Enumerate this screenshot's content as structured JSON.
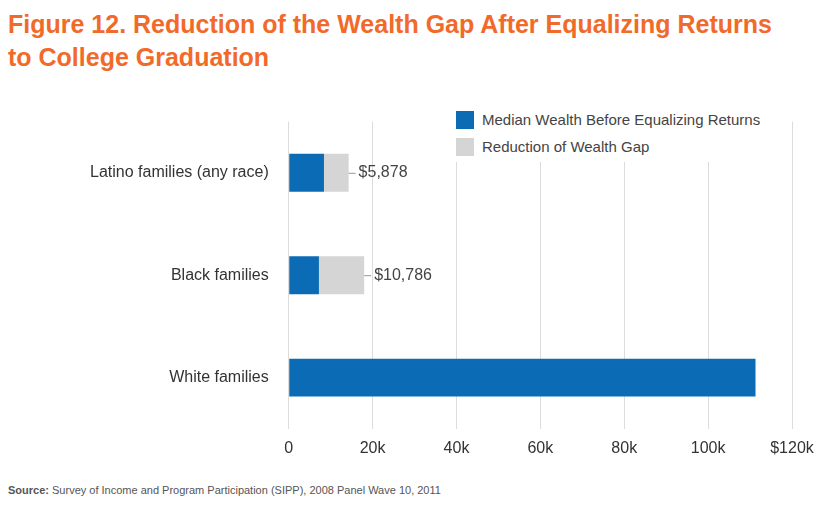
{
  "chart_data": {
    "type": "bar",
    "title": [
      "Figure 12. Reduction of the Wealth Gap After Equalizing Returns",
      "to College Graduation"
    ],
    "source": "Source: Survey of Income and Program Participation (SIPP), 2008 Panel Wave 10, 2011",
    "orientation": "horizontal",
    "stacked": true,
    "categories": [
      "Latino families (any race)",
      "Black families",
      "White families"
    ],
    "series": [
      {
        "name": "Median Wealth Before Equalizing Returns",
        "color": "#0b6cb5",
        "values": [
          8400,
          7200,
          111300
        ]
      },
      {
        "name": "Reduction of Wealth Gap",
        "color": "#d5d5d5",
        "values": [
          5878,
          10786,
          null
        ],
        "data_labels": true,
        "value_labels": [
          "$5,878",
          "$10,786",
          null
        ]
      }
    ],
    "xlim": [
      0,
      120000
    ],
    "xticks": [
      0,
      {
        "value": 20000,
        "label": "20k"
      },
      {
        "value": 40000,
        "label": "40k"
      },
      {
        "value": 60000,
        "label": "60k"
      },
      {
        "value": 80000,
        "label": "80k"
      },
      {
        "value": 100000,
        "label": "100k"
      },
      {
        "value": 120000,
        "label": "$120k"
      }
    ],
    "grid": true,
    "legend": "top right"
  }
}
